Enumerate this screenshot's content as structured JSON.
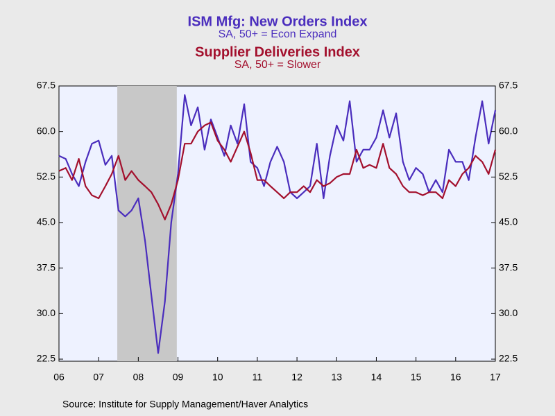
{
  "chart_data": {
    "type": "line",
    "source": "Source:  Institute for Supply Management/Haver Analytics",
    "x": [
      2006.0,
      2006.17,
      2006.33,
      2006.5,
      2006.67,
      2006.83,
      2007.0,
      2007.17,
      2007.33,
      2007.5,
      2007.67,
      2007.83,
      2008.0,
      2008.17,
      2008.33,
      2008.5,
      2008.67,
      2008.83,
      2009.0,
      2009.17,
      2009.33,
      2009.5,
      2009.67,
      2009.83,
      2010.0,
      2010.17,
      2010.33,
      2010.5,
      2010.67,
      2010.83,
      2011.0,
      2011.17,
      2011.33,
      2011.5,
      2011.67,
      2011.83,
      2012.0,
      2012.17,
      2012.33,
      2012.5,
      2012.67,
      2012.83,
      2013.0,
      2013.17,
      2013.33,
      2013.5,
      2013.67,
      2013.83,
      2014.0,
      2014.17,
      2014.33,
      2014.5,
      2014.67,
      2014.83,
      2015.0,
      2015.17,
      2015.33,
      2015.5,
      2015.67,
      2015.83,
      2016.0,
      2016.17,
      2016.33,
      2016.5,
      2016.67,
      2016.83,
      2017.0
    ],
    "series": [
      {
        "name": "ISM Mfg: New Orders Index",
        "subtitle": "SA, 50+ = Econ Expand",
        "color": "#4a2dbd",
        "values": [
          56,
          55.5,
          53,
          51,
          55,
          58,
          58.5,
          54.5,
          56,
          47,
          46,
          47,
          49,
          42,
          33,
          23.5,
          32,
          45,
          53,
          66,
          61,
          64,
          57,
          62,
          59,
          56,
          61,
          58,
          64.5,
          55,
          54,
          51,
          55,
          57.5,
          55,
          50,
          49,
          50,
          51,
          58,
          49,
          56,
          61,
          58.5,
          65,
          55,
          57,
          57,
          59,
          63.5,
          59,
          63,
          55,
          52,
          54,
          53,
          50,
          52,
          50,
          57,
          55,
          55,
          52,
          59,
          65,
          58,
          63.5
        ]
      },
      {
        "name": "Supplier Deliveries Index",
        "subtitle": "SA, 50+ = Slower",
        "color": "#a3102d",
        "values": [
          53.5,
          54,
          52,
          55.5,
          51,
          49.5,
          49,
          51,
          53,
          56,
          52,
          53.5,
          52,
          51,
          50,
          48,
          45.5,
          48,
          52,
          58,
          58,
          60,
          61,
          61.5,
          58.5,
          57,
          55,
          57.5,
          60,
          56.5,
          52,
          52,
          51,
          50,
          49,
          50,
          50,
          51,
          50,
          52,
          51,
          51.5,
          52.5,
          53,
          53,
          57,
          54,
          54.5,
          54,
          58,
          54,
          53,
          51,
          50,
          50,
          49.5,
          50,
          50,
          49,
          52,
          51,
          53,
          54,
          56,
          55,
          53,
          57
        ]
      }
    ],
    "recession": [
      2007.47,
      2008.97
    ],
    "xlim": [
      2006,
      2017
    ],
    "xticks": [
      {
        "value": 2006,
        "label": "06"
      },
      {
        "value": 2007,
        "label": "07"
      },
      {
        "value": 2008,
        "label": "08"
      },
      {
        "value": 2009,
        "label": "09"
      },
      {
        "value": 2010,
        "label": "10"
      },
      {
        "value": 2011,
        "label": "11"
      },
      {
        "value": 2012,
        "label": "12"
      },
      {
        "value": 2013,
        "label": "13"
      },
      {
        "value": 2014,
        "label": "14"
      },
      {
        "value": 2015,
        "label": "15"
      },
      {
        "value": 2016,
        "label": "16"
      },
      {
        "value": 2017,
        "label": "17"
      }
    ],
    "ylim": [
      22.5,
      67.5
    ],
    "yticks": [
      {
        "value": 22.5,
        "label": "22.5"
      },
      {
        "value": 30,
        "label": "30.0"
      },
      {
        "value": 37.5,
        "label": "37.5"
      },
      {
        "value": 45,
        "label": "45.0"
      },
      {
        "value": 52.5,
        "label": "52.5"
      },
      {
        "value": 60,
        "label": "60.0"
      },
      {
        "value": 67.5,
        "label": "67.5"
      }
    ]
  }
}
